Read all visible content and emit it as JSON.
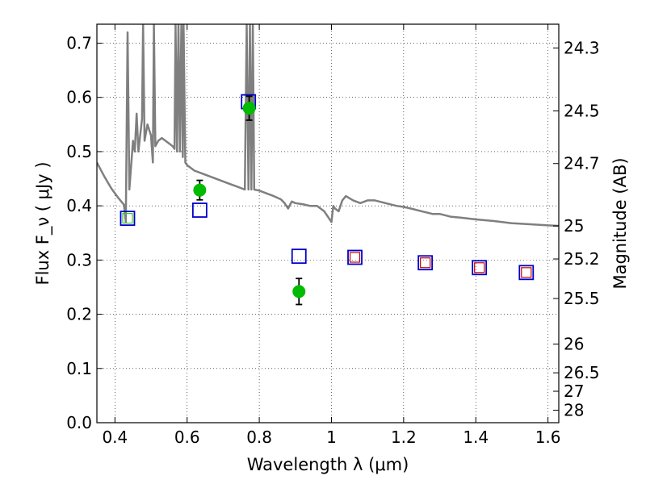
{
  "chart_data": {
    "type": "scatter",
    "title": "",
    "xlabel": "Wavelength  λ (μm)",
    "ylabel": "Flux  F_ν  ( μJy )",
    "ylabel_right": "Magnitude (AB)",
    "xlim": [
      0.35,
      1.63
    ],
    "ylim": [
      0.0,
      0.735
    ],
    "grid": true,
    "x_ticks": [
      0.4,
      0.6,
      0.8,
      1.0,
      1.2,
      1.4,
      1.6
    ],
    "x_tick_labels": [
      "0.4",
      "0.6",
      "0.8",
      "1",
      "1.2",
      "1.4",
      "1.6"
    ],
    "y_ticks": [
      0.0,
      0.1,
      0.2,
      0.3,
      0.4,
      0.5,
      0.6,
      0.7
    ],
    "y_tick_labels": [
      "0.0",
      "0.1",
      "0.2",
      "0.3",
      "0.4",
      "0.5",
      "0.6",
      "0.7"
    ],
    "right_ticks": [
      {
        "flux": 0.691,
        "label": "24.3"
      },
      {
        "flux": 0.575,
        "label": "24.5"
      },
      {
        "flux": 0.478,
        "label": "24.7"
      },
      {
        "flux": 0.363,
        "label": "25"
      },
      {
        "flux": 0.302,
        "label": "25.2"
      },
      {
        "flux": 0.229,
        "label": "25.5"
      },
      {
        "flux": 0.145,
        "label": "26"
      },
      {
        "flux": 0.092,
        "label": "26.5"
      },
      {
        "flux": 0.058,
        "label": "27"
      },
      {
        "flux": 0.023,
        "label": "28"
      }
    ],
    "series": [
      {
        "kind": "line",
        "color": "#7f7f7f",
        "points": [
          [
            0.35,
            0.48
          ],
          [
            0.37,
            0.455
          ],
          [
            0.39,
            0.432
          ],
          [
            0.41,
            0.414
          ],
          [
            0.425,
            0.402
          ],
          [
            0.43,
            0.37
          ],
          [
            0.435,
            0.72
          ],
          [
            0.44,
            0.43
          ],
          [
            0.45,
            0.52
          ],
          [
            0.455,
            0.5
          ],
          [
            0.46,
            0.57
          ],
          [
            0.465,
            0.5
          ],
          [
            0.47,
            0.53
          ],
          [
            0.475,
            0.56
          ],
          [
            0.478,
            0.735
          ],
          [
            0.482,
            0.52
          ],
          [
            0.49,
            0.55
          ],
          [
            0.495,
            0.54
          ],
          [
            0.5,
            0.53
          ],
          [
            0.505,
            0.48
          ],
          [
            0.508,
            0.735
          ],
          [
            0.512,
            0.51
          ],
          [
            0.52,
            0.52
          ],
          [
            0.53,
            0.525
          ],
          [
            0.54,
            0.52
          ],
          [
            0.55,
            0.515
          ],
          [
            0.56,
            0.51
          ],
          [
            0.565,
            0.505
          ],
          [
            0.568,
            0.735
          ],
          [
            0.572,
            0.5
          ],
          [
            0.576,
            0.735
          ],
          [
            0.58,
            0.5
          ],
          [
            0.584,
            0.735
          ],
          [
            0.588,
            0.49
          ],
          [
            0.59,
            0.735
          ],
          [
            0.595,
            0.48
          ],
          [
            0.6,
            0.475
          ],
          [
            0.62,
            0.465
          ],
          [
            0.64,
            0.46
          ],
          [
            0.66,
            0.455
          ],
          [
            0.68,
            0.45
          ],
          [
            0.7,
            0.445
          ],
          [
            0.72,
            0.44
          ],
          [
            0.74,
            0.435
          ],
          [
            0.76,
            0.43
          ],
          [
            0.765,
            0.735
          ],
          [
            0.77,
            0.43
          ],
          [
            0.774,
            0.735
          ],
          [
            0.778,
            0.43
          ],
          [
            0.782,
            0.735
          ],
          [
            0.786,
            0.43
          ],
          [
            0.8,
            0.428
          ],
          [
            0.82,
            0.423
          ],
          [
            0.84,
            0.418
          ],
          [
            0.86,
            0.412
          ],
          [
            0.87,
            0.405
          ],
          [
            0.88,
            0.395
          ],
          [
            0.89,
            0.408
          ],
          [
            0.9,
            0.405
          ],
          [
            0.92,
            0.403
          ],
          [
            0.94,
            0.4
          ],
          [
            0.96,
            0.4
          ],
          [
            0.98,
            0.39
          ],
          [
            0.99,
            0.38
          ],
          [
            1.0,
            0.37
          ],
          [
            1.005,
            0.4
          ],
          [
            1.01,
            0.395
          ],
          [
            1.02,
            0.39
          ],
          [
            1.03,
            0.41
          ],
          [
            1.04,
            0.418
          ],
          [
            1.06,
            0.41
          ],
          [
            1.08,
            0.405
          ],
          [
            1.1,
            0.41
          ],
          [
            1.12,
            0.41
          ],
          [
            1.15,
            0.405
          ],
          [
            1.18,
            0.4
          ],
          [
            1.2,
            0.398
          ],
          [
            1.22,
            0.395
          ],
          [
            1.25,
            0.39
          ],
          [
            1.28,
            0.385
          ],
          [
            1.3,
            0.385
          ],
          [
            1.33,
            0.38
          ],
          [
            1.36,
            0.378
          ],
          [
            1.4,
            0.375
          ],
          [
            1.45,
            0.372
          ],
          [
            1.5,
            0.368
          ],
          [
            1.55,
            0.366
          ],
          [
            1.6,
            0.364
          ],
          [
            1.63,
            0.363
          ]
        ]
      },
      {
        "kind": "open-square",
        "color": "#0000cc",
        "points": [
          [
            0.435,
            0.377
          ],
          [
            0.635,
            0.392
          ],
          [
            0.77,
            0.592
          ],
          [
            0.91,
            0.307
          ],
          [
            1.065,
            0.305
          ],
          [
            1.26,
            0.295
          ],
          [
            1.41,
            0.286
          ],
          [
            1.54,
            0.277
          ]
        ]
      },
      {
        "kind": "small-square",
        "color_edge": "#cc0000",
        "points": [
          [
            0.435,
            0.377,
            "#33cc33"
          ],
          [
            1.065,
            0.305,
            "#cc0000"
          ],
          [
            1.26,
            0.295,
            "#cc0000"
          ],
          [
            1.41,
            0.286,
            "#cc0000"
          ],
          [
            1.54,
            0.277,
            "#cc0000"
          ]
        ]
      },
      {
        "kind": "filled-circle",
        "color": "#00bb00",
        "points": [
          [
            0.635,
            0.429,
            0.018
          ],
          [
            0.772,
            0.58,
            0.022
          ],
          [
            0.91,
            0.242,
            0.024
          ]
        ]
      }
    ]
  }
}
